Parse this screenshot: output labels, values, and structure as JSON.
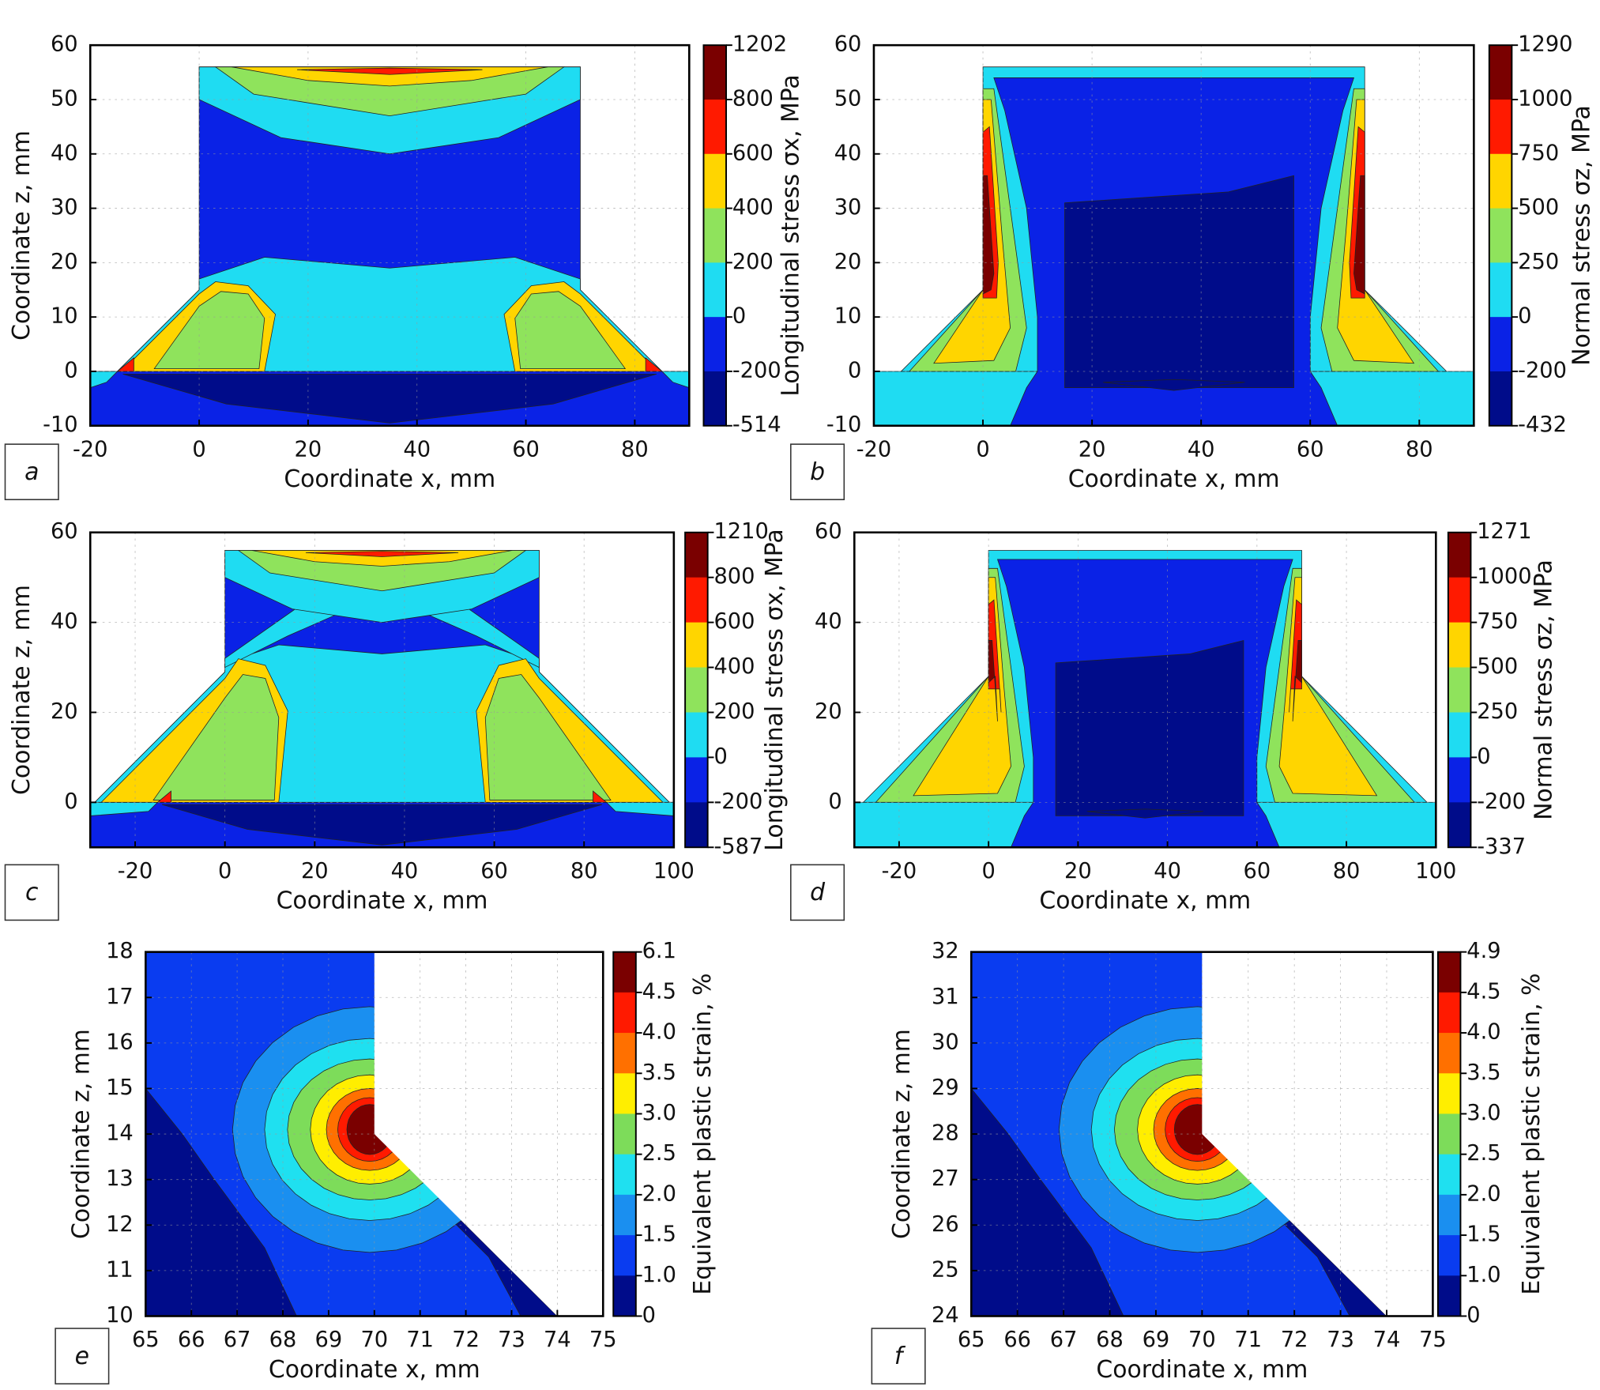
{
  "chart_data": [
    {
      "type": "contour",
      "label": "a",
      "xlabel": "Coordinate x, mm",
      "ylabel": "Coordinate z, mm",
      "xlim": [
        -20,
        90
      ],
      "xticks": [
        -20,
        0,
        20,
        40,
        60,
        80
      ],
      "ylim": [
        -10,
        60
      ],
      "yticks": [
        -10,
        0,
        10,
        20,
        30,
        40,
        50,
        60
      ],
      "colorbar": {
        "label": "Longitudinal stress σx, MPa",
        "ticks": [
          1202,
          800,
          600,
          400,
          200,
          0,
          -200,
          -514
        ],
        "colors": [
          "#7a0000",
          "#ff1a00",
          "#ffd500",
          "#8fe35c",
          "#1fdcf2",
          "#0a22e6",
          "#000c8a"
        ]
      }
    },
    {
      "type": "contour",
      "label": "b",
      "xlabel": "Coordinate x, mm",
      "xlim": [
        -20,
        90
      ],
      "xticks": [
        -20,
        0,
        20,
        40,
        60,
        80
      ],
      "ylim": [
        -10,
        60
      ],
      "yticks": [
        -10,
        0,
        10,
        20,
        30,
        40,
        50,
        60
      ],
      "colorbar": {
        "label": "Normal stress σz, MPa",
        "ticks": [
          1290,
          1000,
          750,
          500,
          250,
          0,
          -200,
          -432
        ],
        "colors": [
          "#7a0000",
          "#ff1a00",
          "#ffd500",
          "#8fe35c",
          "#1fdcf2",
          "#0a22e6",
          "#000c8a"
        ]
      }
    },
    {
      "type": "contour",
      "label": "c",
      "xlabel": "Coordinate x, mm",
      "ylabel": "Coordinate z, mm",
      "xlim": [
        -30,
        100
      ],
      "xticks": [
        -20,
        0,
        20,
        40,
        60,
        80,
        100
      ],
      "ylim": [
        -10,
        60
      ],
      "yticks": [
        0,
        20,
        40,
        60
      ],
      "colorbar": {
        "label": "Longitudinal stress σx, MPa",
        "ticks": [
          1210,
          800,
          600,
          400,
          200,
          0,
          -200,
          -587
        ],
        "colors": [
          "#7a0000",
          "#ff1a00",
          "#ffd500",
          "#8fe35c",
          "#1fdcf2",
          "#0a22e6",
          "#000c8a"
        ]
      }
    },
    {
      "type": "contour",
      "label": "d",
      "xlabel": "Coordinate x, mm",
      "xlim": [
        -30,
        100
      ],
      "xticks": [
        -20,
        0,
        20,
        40,
        60,
        80,
        100
      ],
      "ylim": [
        -10,
        60
      ],
      "yticks": [
        0,
        20,
        40,
        60
      ],
      "colorbar": {
        "label": "Normal stress σz, MPa",
        "ticks": [
          1271,
          1000,
          750,
          500,
          250,
          0,
          -200,
          -337
        ],
        "colors": [
          "#7a0000",
          "#ff1a00",
          "#ffd500",
          "#8fe35c",
          "#1fdcf2",
          "#0a22e6",
          "#000c8a"
        ]
      }
    },
    {
      "type": "contour",
      "label": "e",
      "xlabel": "Coordinate x, mm",
      "ylabel": "Coordinate z, mm",
      "xlim": [
        65,
        75
      ],
      "xticks": [
        65,
        66,
        67,
        68,
        69,
        70,
        71,
        72,
        73,
        74,
        75
      ],
      "ylim": [
        10,
        18
      ],
      "yticks": [
        10,
        11,
        12,
        13,
        14,
        15,
        16,
        17,
        18
      ],
      "colorbar": {
        "label": "Equivalent plastic strain, %",
        "ticks": [
          6.1,
          4.5,
          {
            "value": 4,
            "label": "4.0"
          },
          3.5,
          {
            "value": 3,
            "label": "3.0"
          },
          2.5,
          {
            "value": 2,
            "label": "2.0"
          },
          1.5,
          {
            "value": 1,
            "label": "1.0"
          },
          0
        ],
        "colors": [
          "#7a0000",
          "#ff1a00",
          "#ff7000",
          "#ffee00",
          "#7ddc5a",
          "#1fe0f0",
          "#1a8ff0",
          "#0a3cf0",
          "#000c8a"
        ]
      }
    },
    {
      "type": "contour",
      "label": "f",
      "xlabel": "Coordinate x, mm",
      "ylabel": "Coordinate z, mm",
      "xlim": [
        65,
        75
      ],
      "xticks": [
        65,
        66,
        67,
        68,
        69,
        70,
        71,
        72,
        73,
        74,
        75
      ],
      "ylim": [
        24,
        32
      ],
      "yticks": [
        24,
        25,
        26,
        27,
        28,
        29,
        30,
        31,
        32
      ],
      "colorbar": {
        "label": "Equivalent plastic strain, %",
        "ticks": [
          4.9,
          4.5,
          {
            "value": 4,
            "label": "4.0"
          },
          3.5,
          {
            "value": 3,
            "label": "3.0"
          },
          2.5,
          {
            "value": 2,
            "label": "2.0"
          },
          1.5,
          {
            "value": 1,
            "label": "1.0"
          },
          0
        ],
        "colors": [
          "#7a0000",
          "#ff1a00",
          "#ff7000",
          "#ffee00",
          "#7ddc5a",
          "#1fe0f0",
          "#1a8ff0",
          "#0a3cf0",
          "#000c8a"
        ]
      }
    }
  ]
}
